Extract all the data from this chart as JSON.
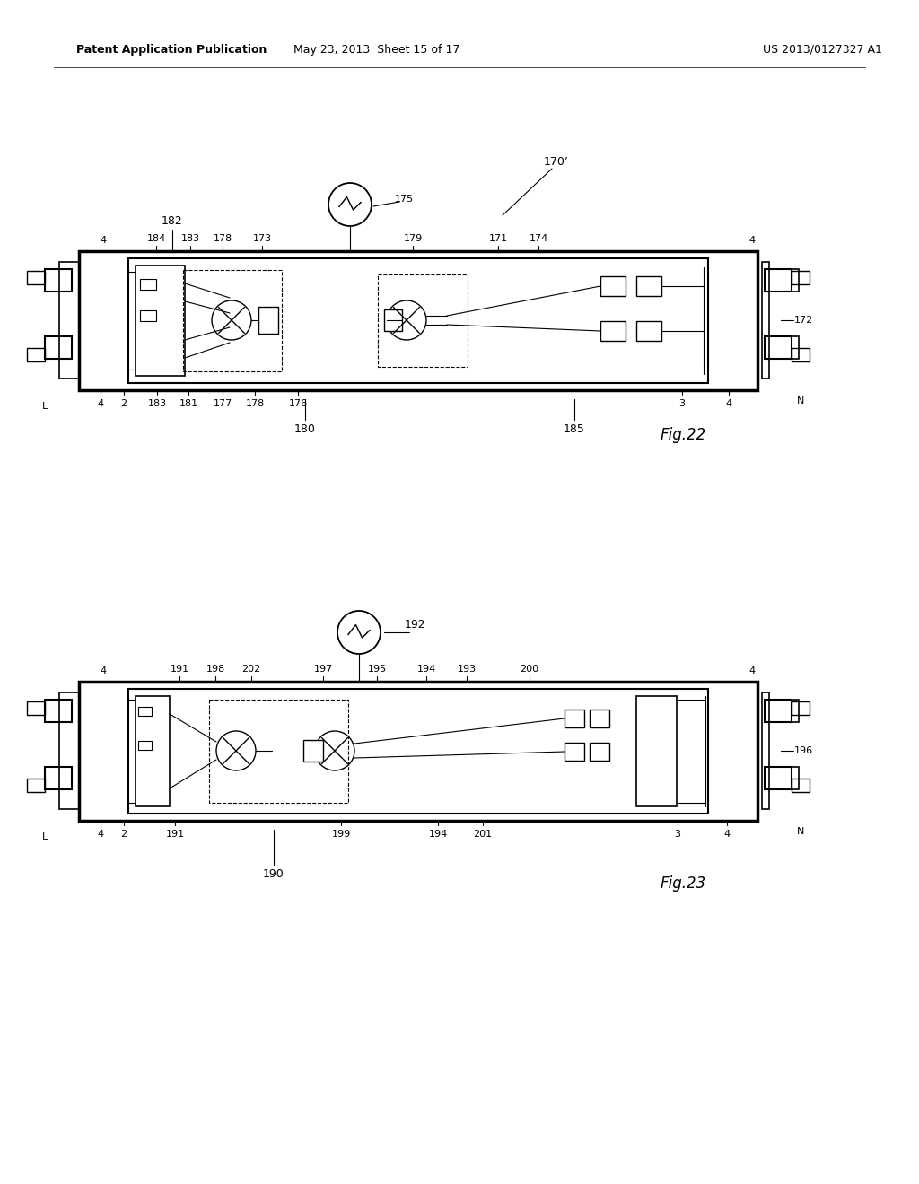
{
  "bg_color": "#ffffff",
  "header_left": "Patent Application Publication",
  "header_mid": "May 23, 2013  Sheet 15 of 17",
  "header_right": "US 2013/0127327 A1",
  "fig22_label": "Fig.22",
  "fig23_label": "Fig.23"
}
